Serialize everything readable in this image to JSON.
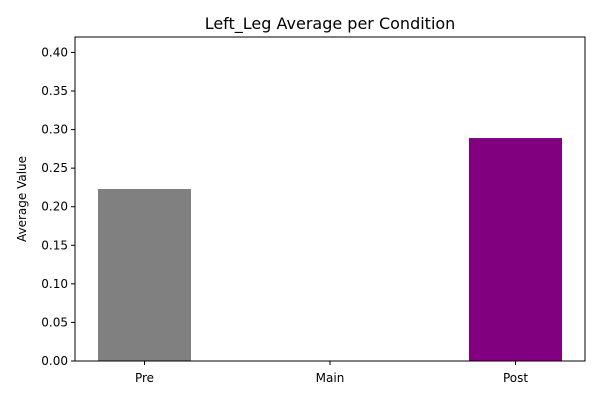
{
  "chart_data": {
    "type": "bar",
    "title": "Left_Leg Average per Condition",
    "xlabel": "",
    "ylabel": "Average Value",
    "categories": [
      "Pre",
      "Main",
      "Post"
    ],
    "values": [
      0.223,
      0.0,
      0.289
    ],
    "colors": [
      "#808080",
      "#1f77b4",
      "#800080"
    ],
    "ylim": [
      0,
      0.42
    ],
    "yticks": [
      0.0,
      0.05,
      0.1,
      0.15,
      0.2,
      0.25,
      0.3,
      0.35,
      0.4
    ],
    "ytick_labels": [
      "0.00",
      "0.05",
      "0.10",
      "0.15",
      "0.20",
      "0.25",
      "0.30",
      "0.35",
      "0.40"
    ],
    "grid": false,
    "legend": "none"
  }
}
